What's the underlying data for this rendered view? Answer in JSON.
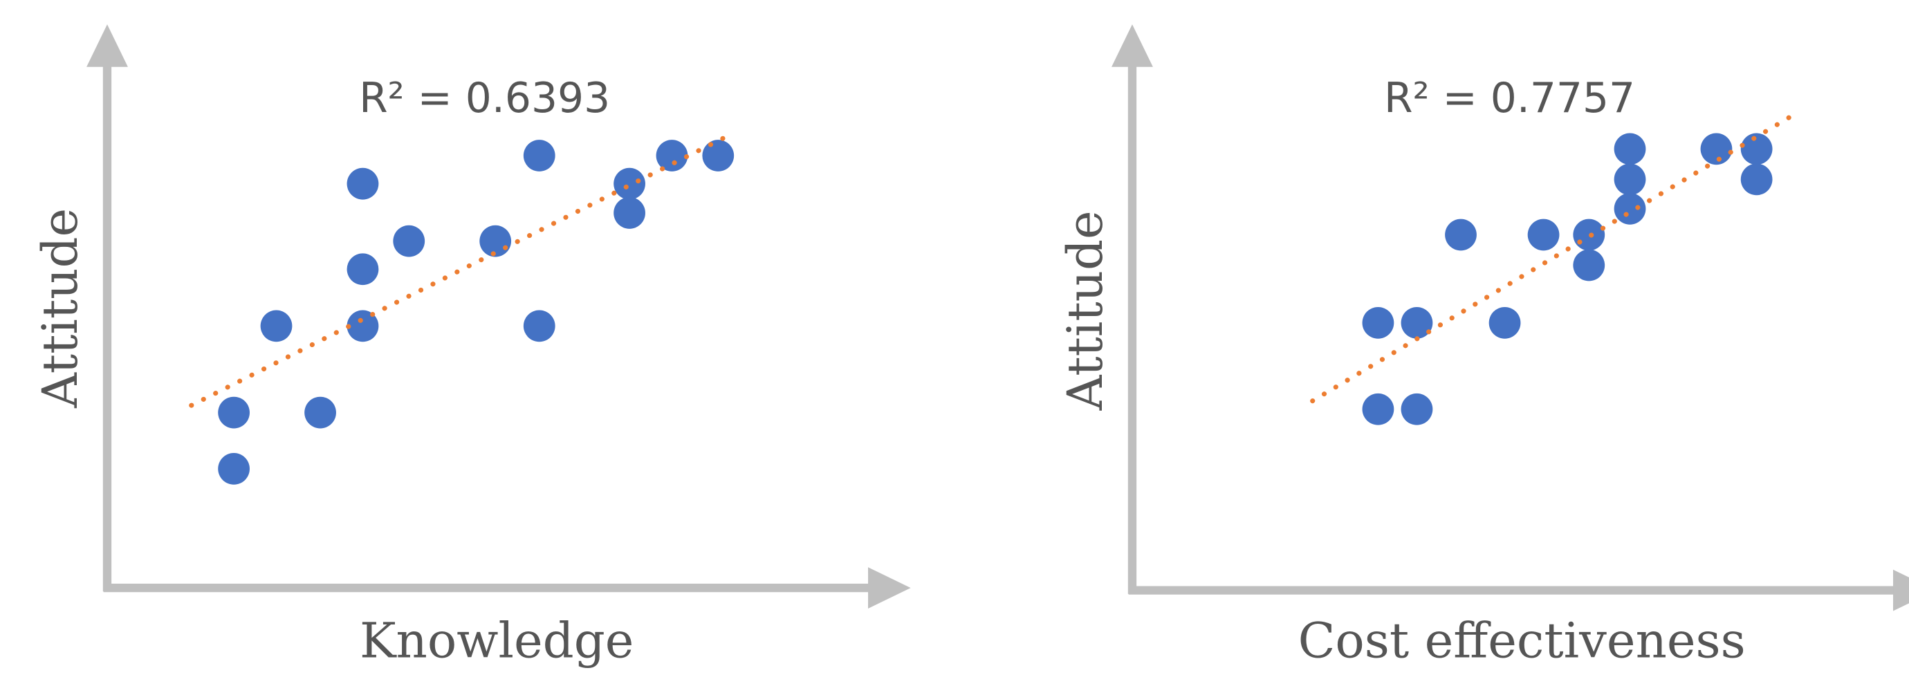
{
  "chart_data": [
    {
      "type": "scatter",
      "xlabel": "Knowledge",
      "ylabel": "Attitude",
      "annotation": "R² = 0.6393",
      "xlim": [
        0,
        10
      ],
      "ylim": [
        0,
        10
      ],
      "color": "#4472c4",
      "trend_color": "#ed7d31",
      "x": [
        1.7,
        1.7,
        2.27,
        2.86,
        3.43,
        3.43,
        3.43,
        4.05,
        5.21,
        5.8,
        5.8,
        7.01,
        7.01,
        7.58,
        8.2
      ],
      "y": [
        3.18,
        2.16,
        4.75,
        3.18,
        7.33,
        5.78,
        4.75,
        6.29,
        6.29,
        7.84,
        4.75,
        7.33,
        6.8,
        7.84,
        7.84
      ],
      "trendline": {
        "x": [
          1.13,
          8.32
        ],
        "y": [
          3.31,
          8.19
        ]
      }
    },
    {
      "type": "scatter",
      "xlabel": "Cost effectiveness",
      "ylabel": "Attitude",
      "annotation": "R² = 0.7757",
      "xlim": [
        0,
        10
      ],
      "ylim": [
        0,
        10
      ],
      "color": "#4472c4",
      "trend_color": "#ed7d31",
      "x": [
        3.3,
        3.82,
        3.3,
        3.82,
        4.41,
        5.0,
        5.52,
        6.13,
        6.13,
        6.68,
        6.68,
        6.68,
        7.84,
        8.38,
        8.38
      ],
      "y": [
        3.27,
        3.27,
        4.83,
        4.83,
        6.42,
        4.83,
        6.42,
        6.42,
        5.87,
        7.97,
        7.42,
        6.89,
        7.97,
        7.97,
        7.42
      ],
      "trendline": {
        "x": [
          2.42,
          8.82
        ],
        "y": [
          3.42,
          8.54
        ]
      }
    }
  ]
}
